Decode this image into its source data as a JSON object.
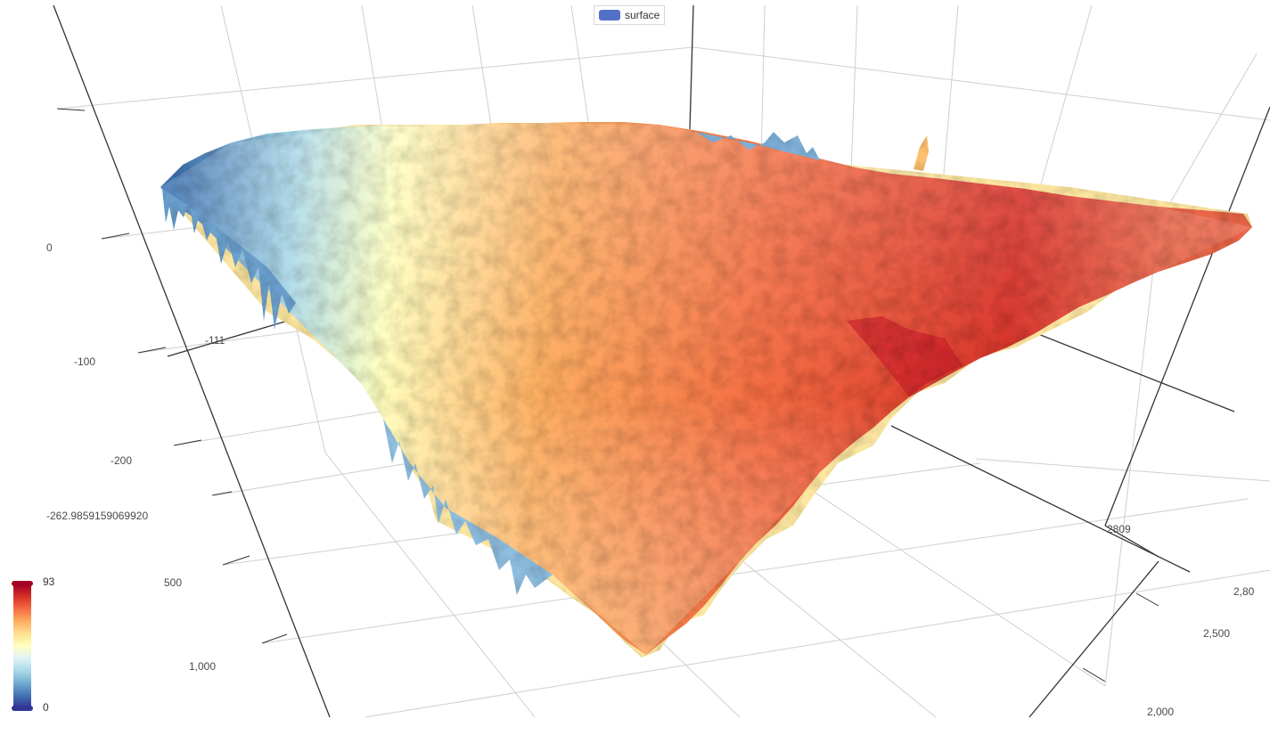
{
  "legend": {
    "label": "surface",
    "swatch_color": "#5470c6"
  },
  "visual_map": {
    "max_label": "93",
    "min_label": "0",
    "colors": [
      "#313695",
      "#4575b4",
      "#74add1",
      "#abd9e9",
      "#e0f3f8",
      "#ffffbf",
      "#fee090",
      "#fdae61",
      "#f46d43",
      "#d73027",
      "#a50026"
    ]
  },
  "axis_ticks": {
    "z": [
      "0",
      "-100",
      "-200",
      "-262.9859159069920"
    ],
    "x": [
      "500",
      "1,000"
    ],
    "y": [
      "2,000",
      "2,500",
      "2,80",
      "2809"
    ],
    "inner": "-111"
  },
  "chart_data": {
    "type": "surface",
    "series_name": "surface",
    "value_range": [
      0,
      93
    ],
    "z_axis_range": [
      -262.985915906992,
      0
    ],
    "notes": "3D rough terrain-like surface; higher values shown red, lower values shown blue"
  }
}
